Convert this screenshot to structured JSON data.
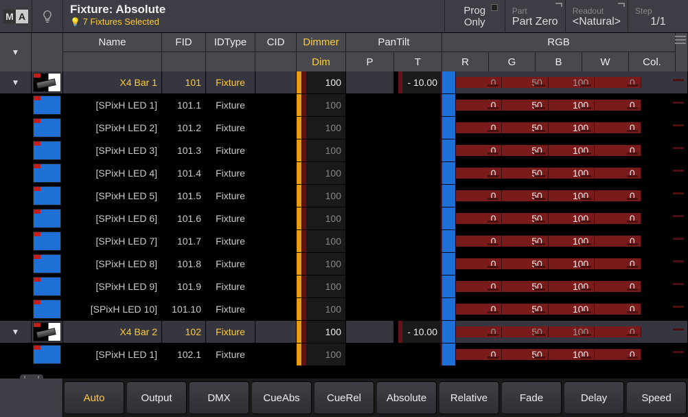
{
  "title": "Fixture: Absolute",
  "subtitle": "7 Fixtures Selected",
  "top": {
    "prog": {
      "l1": "Prog",
      "l2": "Only"
    },
    "part": {
      "label": "Part",
      "value": "Part Zero"
    },
    "readout": {
      "label": "Readout",
      "value": "<Natural>"
    },
    "step": {
      "label": "Step",
      "value": "1/1"
    }
  },
  "columns": {
    "name": "Name",
    "fid": "FID",
    "idtype": "IDType",
    "cid": "CID",
    "dimmer_g": "Dimmer",
    "dim": "Dim",
    "pantilt_g": "PanTilt",
    "p": "P",
    "t": "T",
    "rgb_g": "RGB",
    "r": "R",
    "g": "G",
    "b": "B",
    "w": "W",
    "col": "Col."
  },
  "rows": [
    {
      "parent": true,
      "name": "X4 Bar 1",
      "fid": "101",
      "idtype": "Fixture",
      "dim": "100",
      "t": "- 10.00",
      "r": "0",
      "g": "50",
      "b": "100",
      "w": "0"
    },
    {
      "parent": false,
      "name": "[SPixH LED 1]",
      "fid": "101.1",
      "idtype": "Fixture",
      "dim": "100",
      "t": "",
      "r": "0",
      "g": "50",
      "b": "100",
      "w": "0"
    },
    {
      "parent": false,
      "name": "[SPixH LED 2]",
      "fid": "101.2",
      "idtype": "Fixture",
      "dim": "100",
      "t": "",
      "r": "0",
      "g": "50",
      "b": "100",
      "w": "0"
    },
    {
      "parent": false,
      "name": "[SPixH LED  3]",
      "fid": "101.3",
      "idtype": "Fixture",
      "dim": "100",
      "t": "",
      "r": "0",
      "g": "50",
      "b": "100",
      "w": "0"
    },
    {
      "parent": false,
      "name": "[SPixH LED  4]",
      "fid": "101.4",
      "idtype": "Fixture",
      "dim": "100",
      "t": "",
      "r": "0",
      "g": "50",
      "b": "100",
      "w": "0"
    },
    {
      "parent": false,
      "name": "[SPixH LED  5]",
      "fid": "101.5",
      "idtype": "Fixture",
      "dim": "100",
      "t": "",
      "r": "0",
      "g": "50",
      "b": "100",
      "w": "0"
    },
    {
      "parent": false,
      "name": "[SPixH LED  6]",
      "fid": "101.6",
      "idtype": "Fixture",
      "dim": "100",
      "t": "",
      "r": "0",
      "g": "50",
      "b": "100",
      "w": "0"
    },
    {
      "parent": false,
      "name": "[SPixH LED  7]",
      "fid": "101.7",
      "idtype": "Fixture",
      "dim": "100",
      "t": "",
      "r": "0",
      "g": "50",
      "b": "100",
      "w": "0"
    },
    {
      "parent": false,
      "name": "[SPixH LED  8]",
      "fid": "101.8",
      "idtype": "Fixture",
      "dim": "100",
      "t": "",
      "r": "0",
      "g": "50",
      "b": "100",
      "w": "0"
    },
    {
      "parent": false,
      "name": "[SPixH LED  9]",
      "fid": "101.9",
      "idtype": "Fixture",
      "dim": "100",
      "t": "",
      "r": "0",
      "g": "50",
      "b": "100",
      "w": "0"
    },
    {
      "parent": false,
      "name": "[SPixH LED  10]",
      "fid": "101.10",
      "idtype": "Fixture",
      "dim": "100",
      "t": "",
      "r": "0",
      "g": "50",
      "b": "100",
      "w": "0"
    },
    {
      "parent": true,
      "name": "X4 Bar 2",
      "fid": "102",
      "idtype": "Fixture",
      "dim": "100",
      "t": "- 10.00",
      "r": "0",
      "g": "50",
      "b": "100",
      "w": "0"
    },
    {
      "parent": false,
      "name": "[SPixH LED 1]",
      "fid": "102.1",
      "idtype": "Fixture",
      "dim": "100",
      "t": "",
      "r": "0",
      "g": "50",
      "b": "100",
      "w": "0"
    }
  ],
  "bottom": [
    "Auto",
    "Output",
    "DMX",
    "CueAbs",
    "CueRel",
    "Absolute",
    "Relative",
    "Fade",
    "Delay",
    "Speed"
  ],
  "bottom_active": 0
}
